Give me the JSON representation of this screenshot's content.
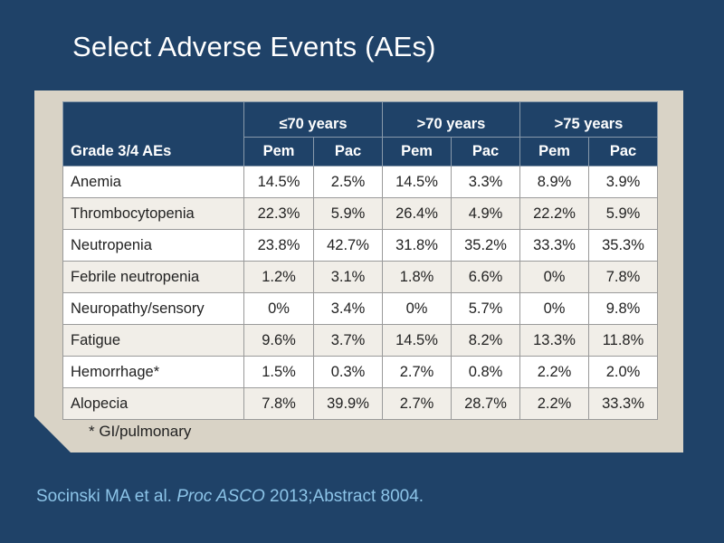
{
  "title": "Select Adverse Events (AEs)",
  "table": {
    "corner_label": "Grade 3/4 AEs",
    "groups": [
      "≤70 years",
      ">70 years",
      ">75 years"
    ],
    "subheaders": [
      "Pem",
      "Pac",
      "Pem",
      "Pac",
      "Pem",
      "Pac"
    ],
    "rows": [
      {
        "label": "Anemia",
        "values": [
          "14.5%",
          "2.5%",
          "14.5%",
          "3.3%",
          "8.9%",
          "3.9%"
        ]
      },
      {
        "label": "Thrombocytopenia",
        "values": [
          "22.3%",
          "5.9%",
          "26.4%",
          "4.9%",
          "22.2%",
          "5.9%"
        ]
      },
      {
        "label": "Neutropenia",
        "values": [
          "23.8%",
          "42.7%",
          "31.8%",
          "35.2%",
          "33.3%",
          "35.3%"
        ]
      },
      {
        "label": "Febrile neutropenia",
        "values": [
          "1.2%",
          "3.1%",
          "1.8%",
          "6.6%",
          "0%",
          "7.8%"
        ]
      },
      {
        "label": "Neuropathy/sensory",
        "values": [
          "0%",
          "3.4%",
          "0%",
          "5.7%",
          "0%",
          "9.8%"
        ]
      },
      {
        "label": "Fatigue",
        "values": [
          "9.6%",
          "3.7%",
          "14.5%",
          "8.2%",
          "13.3%",
          "11.8%"
        ]
      },
      {
        "label": "Hemorrhage*",
        "values": [
          "1.5%",
          "0.3%",
          "2.7%",
          "0.8%",
          "2.2%",
          "2.0%"
        ]
      },
      {
        "label": "Alopecia",
        "values": [
          "7.8%",
          "39.9%",
          "2.7%",
          "28.7%",
          "2.2%",
          "33.3%"
        ]
      }
    ]
  },
  "footnote": "* GI/pulmonary",
  "citation": {
    "authors": "Socinski MA et al.",
    "journal": "Proc ASCO",
    "rest": "2013;Abstract 8004."
  },
  "colors": {
    "background": "#1f4268",
    "panel": "#d9d3c6",
    "header": "#1f4268",
    "citation": "#8cc4e8"
  }
}
